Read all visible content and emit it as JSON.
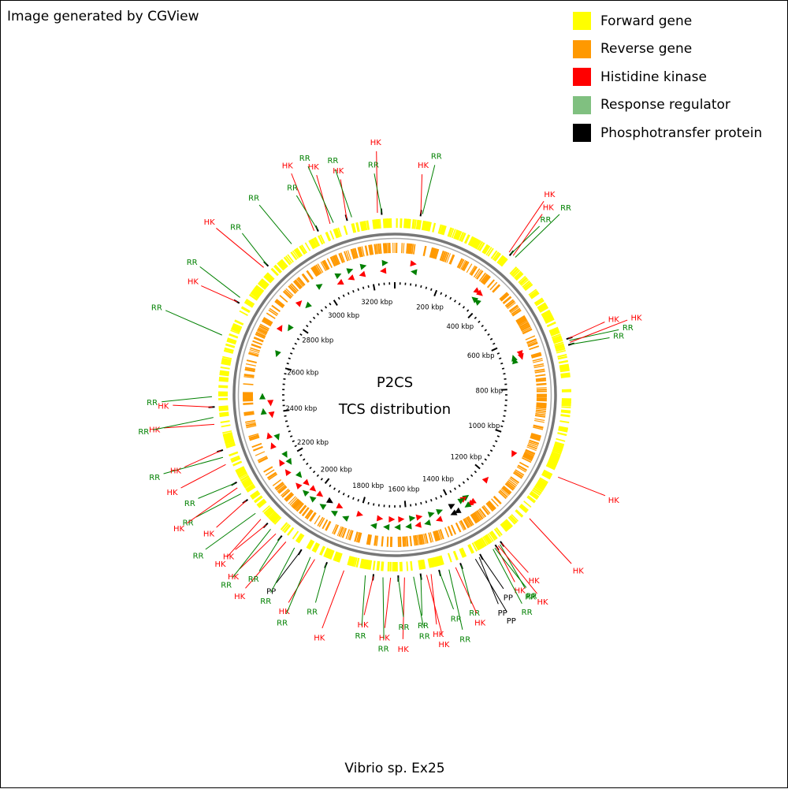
{
  "credit": "Image generated by CGView",
  "organism": "Vibrio sp. Ex25",
  "center_title": "P2CS",
  "center_subtitle": "TCS distribution",
  "colors": {
    "forward": "#ffff00",
    "reverse": "#ff9900",
    "hk": "#ff0000",
    "rr": "#008000",
    "rr_legend": "#80c080",
    "pp": "#000000",
    "backbone": "#888888"
  },
  "legend": [
    {
      "label": "Forward gene",
      "color": "#ffff00"
    },
    {
      "label": "Reverse gene",
      "color": "#ff9900"
    },
    {
      "label": "Histidine kinase",
      "color": "#ff0000"
    },
    {
      "label": "Response regulator",
      "color": "#80c080"
    },
    {
      "label": "Phosphotransfer protein",
      "color": "#000000"
    }
  ],
  "map": {
    "genome_length_kbp": 3300,
    "tick_labels": [
      "200 kbp",
      "400 kbp",
      "600 kbp",
      "800 kbp",
      "1000 kbp",
      "1200 kbp",
      "1400 kbp",
      "1600 kbp",
      "1800 kbp",
      "2000 kbp",
      "2200 kbp",
      "2400 kbp",
      "2600 kbp",
      "2800 kbp",
      "3000 kbp",
      "3200 kbp"
    ],
    "features": [
      {
        "kbp": 75,
        "type": "HK"
      },
      {
        "kbp": 80,
        "type": "RR"
      },
      {
        "kbp": 355,
        "type": "HK"
      },
      {
        "kbp": 362,
        "type": "RR"
      },
      {
        "kbp": 370,
        "type": "HK"
      },
      {
        "kbp": 378,
        "type": "RR"
      },
      {
        "kbp": 660,
        "type": "HK"
      },
      {
        "kbp": 666,
        "type": "RR"
      },
      {
        "kbp": 672,
        "type": "HK"
      },
      {
        "kbp": 678,
        "type": "RR"
      },
      {
        "kbp": 1070,
        "type": "HK"
      },
      {
        "kbp": 1215,
        "type": "HK"
      },
      {
        "kbp": 1322,
        "type": "HK"
      },
      {
        "kbp": 1328,
        "type": "RR"
      },
      {
        "kbp": 1334,
        "type": "HK"
      },
      {
        "kbp": 1340,
        "type": "HK"
      },
      {
        "kbp": 1346,
        "type": "RR"
      },
      {
        "kbp": 1352,
        "type": "RR"
      },
      {
        "kbp": 1392,
        "type": "PP"
      },
      {
        "kbp": 1398,
        "type": "PP"
      },
      {
        "kbp": 1410,
        "type": "PP"
      },
      {
        "kbp": 1455,
        "type": "RR"
      },
      {
        "kbp": 1472,
        "type": "HK"
      },
      {
        "kbp": 1492,
        "type": "RR"
      },
      {
        "kbp": 1520,
        "type": "RR"
      },
      {
        "kbp": 1545,
        "type": "HK"
      },
      {
        "kbp": 1558,
        "type": "HK"
      },
      {
        "kbp": 1575,
        "type": "RR"
      },
      {
        "kbp": 1596,
        "type": "RR"
      },
      {
        "kbp": 1622,
        "type": "HK"
      },
      {
        "kbp": 1640,
        "type": "RR"
      },
      {
        "kbp": 1662,
        "type": "HK"
      },
      {
        "kbp": 1684,
        "type": "RR"
      },
      {
        "kbp": 1712,
        "type": "HK"
      },
      {
        "kbp": 1735,
        "type": "RR"
      },
      {
        "kbp": 1798,
        "type": "HK"
      },
      {
        "kbp": 1852,
        "type": "RR"
      },
      {
        "kbp": 1888,
        "type": "HK"
      },
      {
        "kbp": 1902,
        "type": "RR"
      },
      {
        "kbp": 1935,
        "type": "PP"
      },
      {
        "kbp": 1955,
        "type": "RR"
      },
      {
        "kbp": 1985,
        "type": "HK"
      },
      {
        "kbp": 2005,
        "type": "RR"
      },
      {
        "kbp": 2022,
        "type": "HK"
      },
      {
        "kbp": 2042,
        "type": "RR"
      },
      {
        "kbp": 2060,
        "type": "HK"
      },
      {
        "kbp": 2082,
        "type": "HK"
      },
      {
        "kbp": 2105,
        "type": "RR"
      },
      {
        "kbp": 2150,
        "type": "HK"
      },
      {
        "kbp": 2175,
        "type": "RR"
      },
      {
        "kbp": 2195,
        "type": "HK"
      },
      {
        "kbp": 2210,
        "type": "RR"
      },
      {
        "kbp": 2270,
        "type": "HK"
      },
      {
        "kbp": 2292,
        "type": "RR"
      },
      {
        "kbp": 2312,
        "type": "HK"
      },
      {
        "kbp": 2390,
        "type": "HK"
      },
      {
        "kbp": 2410,
        "type": "RR"
      },
      {
        "kbp": 2440,
        "type": "HK"
      },
      {
        "kbp": 2470,
        "type": "RR"
      },
      {
        "kbp": 2650,
        "type": "RR"
      },
      {
        "kbp": 2755,
        "type": "HK"
      },
      {
        "kbp": 2770,
        "type": "RR"
      },
      {
        "kbp": 2880,
        "type": "HK"
      },
      {
        "kbp": 2892,
        "type": "RR"
      },
      {
        "kbp": 2985,
        "type": "RR"
      },
      {
        "kbp": 3060,
        "type": "HK"
      },
      {
        "kbp": 3070,
        "type": "RR"
      },
      {
        "kbp": 3110,
        "type": "HK"
      },
      {
        "kbp": 3120,
        "type": "RR"
      },
      {
        "kbp": 3160,
        "type": "HK"
      },
      {
        "kbp": 3175,
        "type": "RR"
      },
      {
        "kbp": 3250,
        "type": "HK"
      },
      {
        "kbp": 3262,
        "type": "RR"
      }
    ]
  }
}
